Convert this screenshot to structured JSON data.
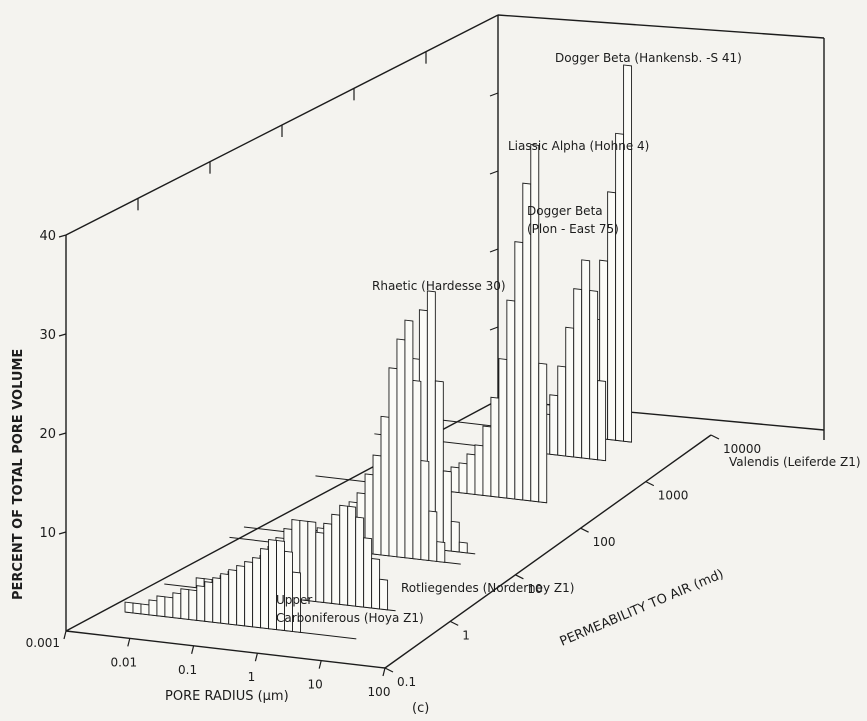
{
  "chart_data": {
    "type": "bar",
    "title": "",
    "panel_label": "(c)",
    "zlabel": "PERCENT OF TOTAL PORE VOLUME",
    "xlabel": "PORE RADIUS (μm)",
    "ylabel": "PERMEABILITY TO AIR (md)",
    "z_ticks": [
      "10",
      "20",
      "30",
      "40"
    ],
    "zlim": [
      0,
      40
    ],
    "x_ticks": [
      "0.001",
      "0.01",
      "0.1",
      "1",
      "10",
      "100"
    ],
    "y_ticks": [
      "0.1",
      "1",
      "10",
      "100",
      "1000",
      "10000"
    ],
    "radius_bins_log10": [
      -2.5,
      -2.375,
      -2.25,
      -2.125,
      -2.0,
      -1.875,
      -1.75,
      -1.625,
      -1.5,
      -1.375,
      -1.25,
      -1.125,
      -1.0,
      -0.875,
      -0.75,
      -0.625,
      -0.5,
      -0.375,
      -0.25,
      -0.125,
      0.0,
      0.125,
      0.25,
      0.375,
      0.5,
      0.625,
      0.75,
      0.875,
      1.0
    ],
    "series": [
      {
        "name": "Upper Carboniferous (Hoya Z1)",
        "label_lines": [
          "Upper",
          "Carboniferous (Hoya Z1)"
        ],
        "permeability_md": 0.3,
        "values": [
          1,
          1,
          1,
          1.5,
          2,
          2,
          2.5,
          3,
          3,
          3.5,
          4,
          4.5,
          5,
          5.5,
          6,
          6.5,
          7,
          8,
          9,
          9,
          8,
          6,
          0,
          0,
          0,
          0,
          0,
          0,
          0
        ]
      },
      {
        "name": "Rotliegendes (Norderney Z1)",
        "label_lines": [
          "Rotliegendes (Norderney Z1)"
        ],
        "permeability_md": 1.2,
        "values": [
          0,
          0,
          0,
          0,
          1,
          1,
          1,
          1.5,
          2,
          2,
          2.5,
          3,
          4,
          5,
          6,
          7,
          8,
          8,
          8,
          7,
          8,
          9,
          10,
          10,
          9,
          7,
          5,
          3,
          0
        ]
      },
      {
        "name": "Rhaetic (Hardesse 30)",
        "label_lines": [
          "Rhaetic (Hardesse 30)"
        ],
        "permeability_md": 12,
        "values": [
          0,
          0,
          0,
          0,
          0,
          0,
          0,
          0.5,
          1,
          1,
          1.5,
          2,
          2.5,
          3,
          4,
          5,
          6,
          8,
          10,
          14,
          19,
          22,
          24,
          18,
          10,
          5,
          2,
          0,
          0
        ]
      },
      {
        "name": "Dogger Beta (Plon-East 75)",
        "label_lines": [
          "Dogger Beta",
          "(Plon - East 75)"
        ],
        "permeability_md": 20,
        "values": [
          0,
          0,
          0,
          0,
          0,
          0,
          0,
          0,
          0,
          0.5,
          1,
          1,
          1.5,
          2,
          2.5,
          3,
          4,
          5,
          7,
          10,
          14,
          19,
          24,
          26,
          17,
          8,
          3,
          1,
          0
        ]
      },
      {
        "name": "Liassic Alpha (Hohne 4)",
        "label_lines": [
          "Liassic Alpha (Hohne 4)"
        ],
        "permeability_md": 250,
        "values": [
          0,
          0,
          0,
          0,
          0,
          0,
          0,
          0,
          0,
          0,
          0,
          0,
          0.5,
          1,
          1,
          1.5,
          2,
          2.5,
          3,
          4,
          5,
          7,
          10,
          14,
          20,
          26,
          32,
          36,
          14
        ]
      },
      {
        "name": "Dogger Beta (Hankensb.-S 41)",
        "label_lines": [
          "Dogger Beta (Hankensb. -S 41)"
        ],
        "permeability_md": 2000,
        "values": [
          0,
          0,
          0,
          0,
          0,
          0,
          0,
          0,
          0,
          0,
          0,
          0,
          0,
          0,
          0,
          0,
          0.5,
          1,
          1.5,
          2,
          3,
          4,
          6,
          9,
          13,
          17,
          20,
          17,
          8
        ]
      },
      {
        "name": "Valendis (Leiferde Z1)",
        "label_lines": [
          "Valendis (Leiferde Z1)"
        ],
        "permeability_md": 5000,
        "values": [
          0,
          0,
          0,
          0,
          0,
          0,
          0,
          0,
          0,
          0,
          0,
          0,
          0,
          0,
          0,
          0,
          0,
          0,
          0.5,
          1,
          1.5,
          2,
          4,
          7,
          12,
          18,
          25,
          31,
          38
        ]
      }
    ]
  }
}
